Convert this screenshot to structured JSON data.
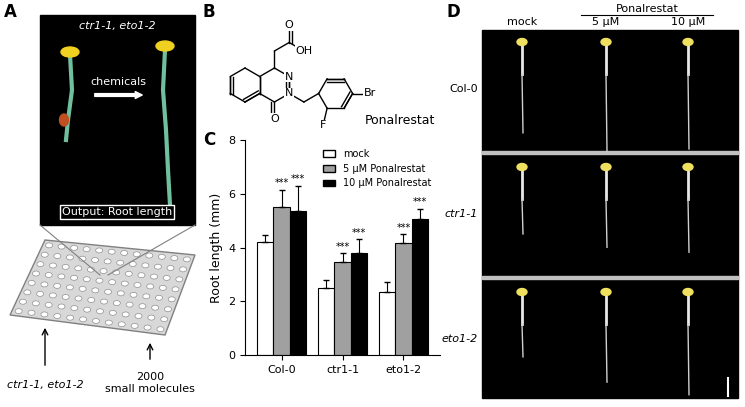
{
  "panel_labels": [
    "A",
    "B",
    "C",
    "D"
  ],
  "panel_a": {
    "photo_title": "ctr1-1, eto1-2",
    "arrow_label": "chemicals",
    "output": "Output: Root length",
    "plate_label": "ctr1-1, eto1-2",
    "library": "2000\nsmall molecules"
  },
  "panel_b": {
    "name": "Ponalrestat",
    "atoms": [
      "OH",
      "O",
      "N",
      "N",
      "O",
      "F",
      "Br"
    ]
  },
  "chart_data": {
    "type": "bar",
    "ylabel": "Root length (mm)",
    "categories": [
      "Col-0",
      "ctr1-1",
      "eto1-2"
    ],
    "series": [
      {
        "name": "mock",
        "color": "#ffffff",
        "values": [
          4.2,
          2.5,
          2.35
        ],
        "errors": [
          0.25,
          0.3,
          0.35
        ],
        "significance": [
          null,
          null,
          null
        ]
      },
      {
        "name": "5 µM Ponalrestat",
        "color": "#a0a0a0",
        "values": [
          5.5,
          3.45,
          4.15
        ],
        "errors": [
          0.65,
          0.35,
          0.35
        ],
        "significance": [
          "***",
          "***",
          "***"
        ]
      },
      {
        "name": "10 µM Ponalrestat",
        "color": "#000000",
        "values": [
          5.35,
          3.8,
          5.05
        ],
        "errors": [
          0.95,
          0.5,
          0.4
        ],
        "significance": [
          "***",
          "***",
          "***"
        ]
      }
    ],
    "ylim": [
      0,
      8
    ],
    "yticks": [
      0,
      2,
      4,
      6,
      8
    ],
    "legend": "upper right"
  },
  "panel_d": {
    "treatment": "Ponalrestat",
    "columns": [
      "mock",
      "5 µM",
      "10 µM"
    ],
    "rows": [
      "Col-0",
      "ctr1-1",
      "eto1-2"
    ]
  }
}
